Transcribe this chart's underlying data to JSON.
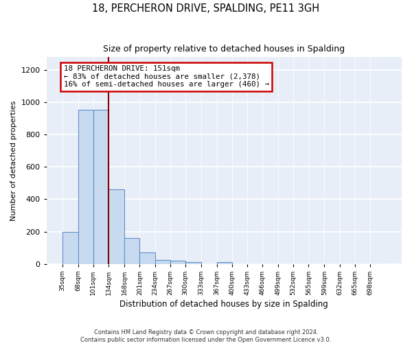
{
  "title": "18, PERCHERON DRIVE, SPALDING, PE11 3GH",
  "subtitle": "Size of property relative to detached houses in Spalding",
  "xlabel": "Distribution of detached houses by size in Spalding",
  "ylabel": "Number of detached properties",
  "bin_labels": [
    "35sqm",
    "68sqm",
    "101sqm",
    "134sqm",
    "168sqm",
    "201sqm",
    "234sqm",
    "267sqm",
    "300sqm",
    "333sqm",
    "367sqm",
    "400sqm",
    "433sqm",
    "466sqm",
    "499sqm",
    "532sqm",
    "565sqm",
    "599sqm",
    "632sqm",
    "665sqm",
    "698sqm"
  ],
  "bar_values": [
    200,
    955,
    955,
    460,
    160,
    70,
    25,
    18,
    12,
    0,
    12,
    0,
    0,
    0,
    0,
    0,
    0,
    0,
    0,
    0,
    0
  ],
  "bar_color": "#c8daf0",
  "bar_edge_color": "#6090c8",
  "vline_color": "#8b0000",
  "ylim": [
    0,
    1280
  ],
  "yticks": [
    0,
    200,
    400,
    600,
    800,
    1000,
    1200
  ],
  "annotation_title": "18 PERCHERON DRIVE: 151sqm",
  "annotation_line1": "← 83% of detached houses are smaller (2,378)",
  "annotation_line2": "16% of semi-detached houses are larger (460) →",
  "annotation_box_color": "#ffffff",
  "annotation_box_edge": "#cc0000",
  "footer_line1": "Contains HM Land Registry data © Crown copyright and database right 2024.",
  "footer_line2": "Contains public sector information licensed under the Open Government Licence v3.0.",
  "bin_edges": [
    35,
    68,
    101,
    134,
    168,
    201,
    234,
    267,
    300,
    333,
    367,
    400,
    433,
    466,
    499,
    532,
    565,
    599,
    632,
    665,
    698,
    731
  ],
  "vline_bin_index": 3,
  "bg_color": "#e8eef8",
  "grid_color": "#ffffff"
}
